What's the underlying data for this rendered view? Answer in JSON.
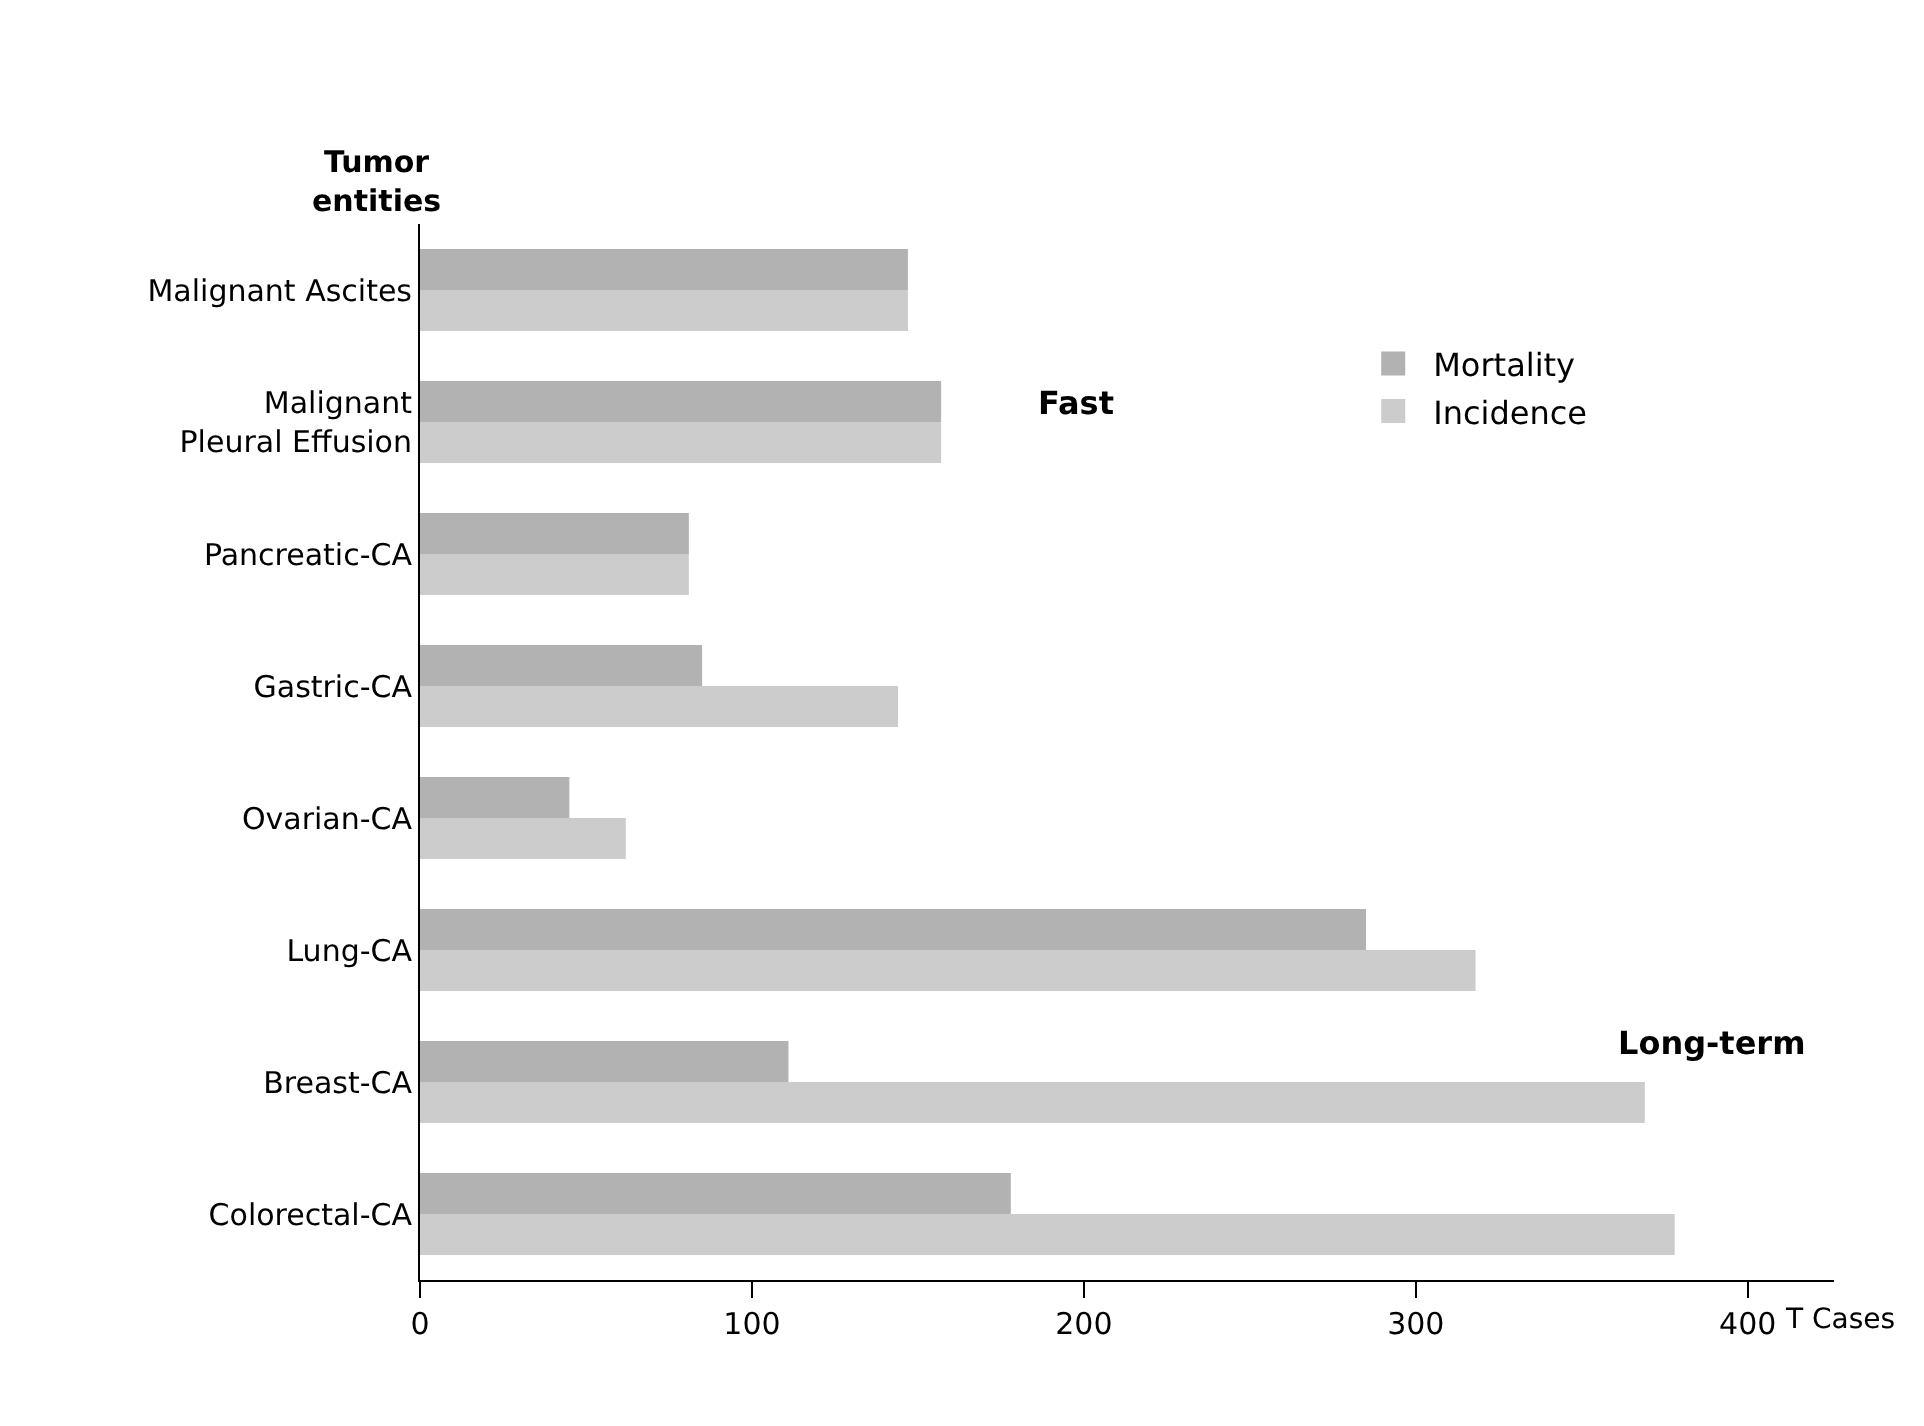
{
  "chart_data": {
    "type": "bar",
    "orientation": "horizontal",
    "ylabel": "Tumor entities",
    "xlabel": "T Cases",
    "categories": [
      "Malignant Ascites",
      "Malignant Pleural Effusion",
      "Pancreatic-CA",
      "Gastric-CA",
      "Ovarian-CA",
      "Lung-CA",
      "Breast-CA",
      "Colorectal-CA"
    ],
    "series": [
      {
        "name": "Mortality",
        "color": "#b2b2b2",
        "values": [
          147,
          157,
          81,
          85,
          45,
          285,
          111,
          178
        ]
      },
      {
        "name": "Incidence",
        "color": "#cccccc",
        "values": [
          147,
          157,
          81,
          144,
          62,
          318,
          369,
          378
        ]
      }
    ],
    "xlim": [
      0,
      426
    ],
    "xticks": [
      0,
      100,
      200,
      300,
      400
    ],
    "annotations": [
      "Fast",
      "Long-term"
    ],
    "legend": "top right"
  }
}
